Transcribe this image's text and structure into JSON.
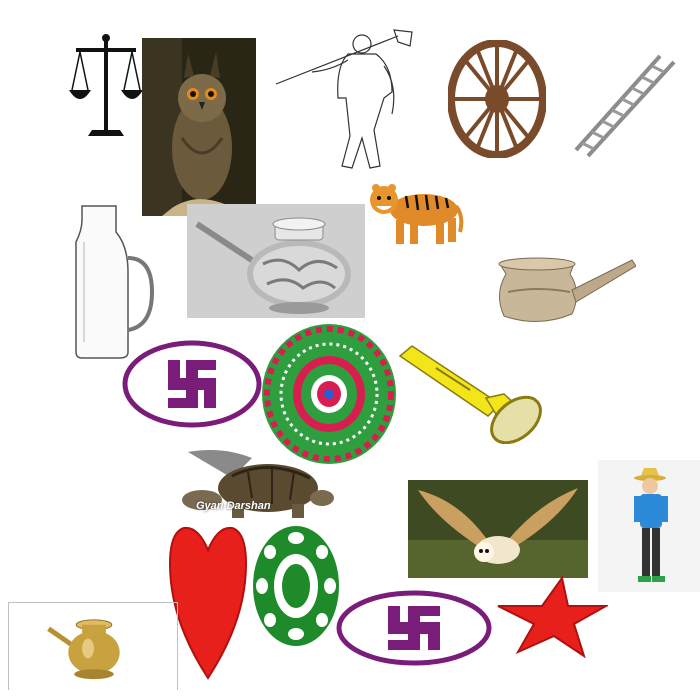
{
  "canvas": {
    "background": "#ffffff"
  },
  "items": [
    {
      "name": "scales",
      "icon": "balance-scale-icon",
      "color": "#111111"
    },
    {
      "name": "owl",
      "icon": "long-eared-owl-photo"
    },
    {
      "name": "farmer",
      "icon": "man-with-shovel-sketch"
    },
    {
      "name": "wheel",
      "icon": "wooden-cart-wheel-icon",
      "color": "#7a4b2a"
    },
    {
      "name": "ladder",
      "icon": "ladder-icon",
      "color": "#8c8c8c"
    },
    {
      "name": "jug",
      "icon": "glass-jug-icon"
    },
    {
      "name": "silver-lota",
      "icon": "silver-lota-spout-photo"
    },
    {
      "name": "tiger",
      "icon": "tiger-photo",
      "color": "#e08a2a"
    },
    {
      "name": "spout-pot",
      "icon": "metal-spout-pot-photo"
    },
    {
      "name": "swastika-1",
      "icon": "swastika-oval-icon",
      "color": "#7a1c7a"
    },
    {
      "name": "rangoli",
      "icon": "rangoli-wheel-icon",
      "color": "#2f9e3f"
    },
    {
      "name": "torch",
      "icon": "flashlight-icon",
      "color": "#f2e51a"
    },
    {
      "name": "tortoise",
      "icon": "tortoise-photo",
      "watermark": "Gyan Darshan"
    },
    {
      "name": "barn-owl",
      "icon": "barn-owl-flying-photo"
    },
    {
      "name": "boy",
      "icon": "boy-with-hat-figure",
      "color": "#2d8ad8"
    },
    {
      "name": "heart",
      "icon": "heart-icon",
      "color": "#e8201c"
    },
    {
      "name": "chakra",
      "icon": "green-chakra-icon",
      "color": "#1f8a2a"
    },
    {
      "name": "brass-lota",
      "icon": "brass-lota-icon",
      "color": "#c9a240"
    },
    {
      "name": "swastika-2",
      "icon": "swastika-oval-icon",
      "color": "#7a1c7a"
    },
    {
      "name": "star",
      "icon": "star-icon",
      "color": "#e8201c"
    }
  ]
}
